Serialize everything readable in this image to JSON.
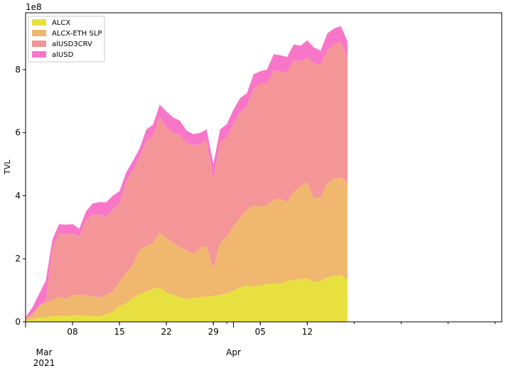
{
  "chart_data": {
    "type": "area",
    "stacked": true,
    "title": "",
    "xlabel": "",
    "ylabel": "TVL",
    "y_scale_label": "1e8",
    "ylim": [
      0,
      9.8
    ],
    "y_ticks": [
      0,
      2,
      4,
      6,
      8
    ],
    "x_day_range": [
      0,
      71
    ],
    "x_ticks": [
      {
        "day": 7,
        "label": "08"
      },
      {
        "day": 14,
        "label": "15"
      },
      {
        "day": 21,
        "label": "22"
      },
      {
        "day": 28,
        "label": "29"
      },
      {
        "day": 35,
        "label": "05"
      },
      {
        "day": 42,
        "label": "12"
      }
    ],
    "x_minor_days": [
      0,
      7,
      14,
      21,
      28,
      30,
      35,
      42,
      49,
      56,
      63,
      70
    ],
    "month_labels": [
      {
        "day": 0,
        "label": "Mar",
        "sub": "2021"
      },
      {
        "day": 31,
        "label": "Apr",
        "sub": ""
      }
    ],
    "legend_position": "upper-left",
    "series": [
      {
        "name": "ALCX",
        "color": "#e8e040",
        "values": [
          0.05,
          0.08,
          0.12,
          0.15,
          0.18,
          0.19,
          0.18,
          0.2,
          0.2,
          0.19,
          0.18,
          0.18,
          0.24,
          0.32,
          0.5,
          0.58,
          0.75,
          0.88,
          0.95,
          1.05,
          1.08,
          0.92,
          0.85,
          0.78,
          0.72,
          0.75,
          0.78,
          0.8,
          0.82,
          0.85,
          0.9,
          0.98,
          1.1,
          1.15,
          1.12,
          1.15,
          1.2,
          1.22,
          1.2,
          1.3,
          1.32,
          1.35,
          1.38,
          1.25,
          1.3,
          1.4,
          1.45,
          1.48,
          1.35
        ]
      },
      {
        "name": "ALCX-ETH SLP",
        "color": "#f0b86e",
        "values": [
          0.05,
          0.12,
          0.38,
          0.45,
          0.5,
          0.6,
          0.55,
          0.65,
          0.65,
          0.65,
          0.62,
          0.6,
          0.6,
          0.65,
          0.78,
          0.98,
          1.05,
          1.4,
          1.45,
          1.45,
          1.75,
          1.75,
          1.65,
          1.6,
          1.55,
          1.4,
          1.55,
          1.6,
          0.85,
          1.65,
          1.8,
          2.05,
          2.2,
          2.4,
          2.58,
          2.5,
          2.5,
          2.65,
          2.7,
          2.5,
          2.8,
          2.95,
          3.05,
          2.65,
          2.65,
          3.0,
          3.1,
          3.1,
          3.05
        ]
      },
      {
        "name": "alUSD3CRV",
        "color": "#f49698",
        "values": [
          0.02,
          0.05,
          0.03,
          0.05,
          1.68,
          2.03,
          2.05,
          1.95,
          1.85,
          2.38,
          2.6,
          2.62,
          2.5,
          2.58,
          2.5,
          2.9,
          3.0,
          2.92,
          3.35,
          3.4,
          3.68,
          3.5,
          3.5,
          3.55,
          3.4,
          3.45,
          3.3,
          3.35,
          2.85,
          3.2,
          3.15,
          3.25,
          3.35,
          3.3,
          3.7,
          3.9,
          3.85,
          4.1,
          4.05,
          4.1,
          4.18,
          3.95,
          3.95,
          4.3,
          4.2,
          4.2,
          4.25,
          4.3,
          4.0
        ]
      },
      {
        "name": "alUSD",
        "color": "#f876c8",
        "values": [
          0.03,
          0.2,
          0.35,
          0.65,
          0.25,
          0.28,
          0.3,
          0.3,
          0.25,
          0.28,
          0.35,
          0.4,
          0.45,
          0.45,
          0.36,
          0.28,
          0.3,
          0.3,
          0.35,
          0.35,
          0.38,
          0.5,
          0.48,
          0.45,
          0.4,
          0.35,
          0.36,
          0.35,
          0.48,
          0.4,
          0.42,
          0.45,
          0.45,
          0.4,
          0.45,
          0.4,
          0.45,
          0.52,
          0.5,
          0.5,
          0.5,
          0.5,
          0.55,
          0.5,
          0.45,
          0.55,
          0.5,
          0.5,
          0.5
        ]
      }
    ]
  }
}
